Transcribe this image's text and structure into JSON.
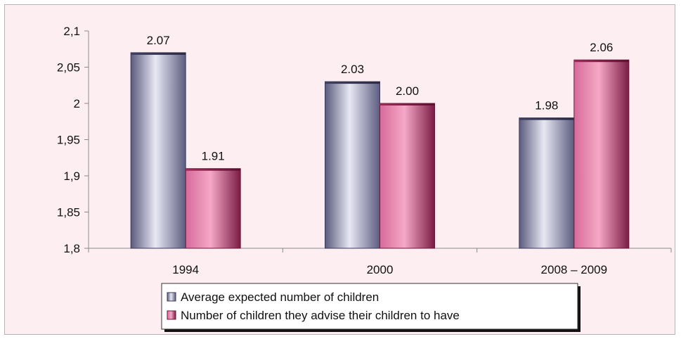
{
  "chart_data": {
    "type": "bar",
    "title": "",
    "xlabel": "",
    "ylabel": "",
    "categories": [
      "1994",
      "2000",
      "2008 – 2009"
    ],
    "series": [
      {
        "name": "Average expected number of children",
        "values": [
          2.07,
          2.03,
          1.98
        ],
        "value_labels": [
          "2.07",
          "2.03",
          "1.98"
        ],
        "color": "#8a8aaa"
      },
      {
        "name": "Number of children they advise their children to have",
        "values": [
          1.91,
          2.0,
          2.06
        ],
        "value_labels": [
          "1.91",
          "2.00",
          "2.06"
        ],
        "color": "#c4437a"
      }
    ],
    "ylim": [
      1.8,
      2.1
    ],
    "yticks": [
      1.8,
      1.85,
      1.9,
      1.95,
      2.0,
      2.05,
      2.1
    ],
    "ytick_labels": [
      "1,8",
      "1,85",
      "1,9",
      "1,95",
      "2",
      "2,05",
      "2,1"
    ],
    "grid": false,
    "legend_position": "bottom"
  }
}
